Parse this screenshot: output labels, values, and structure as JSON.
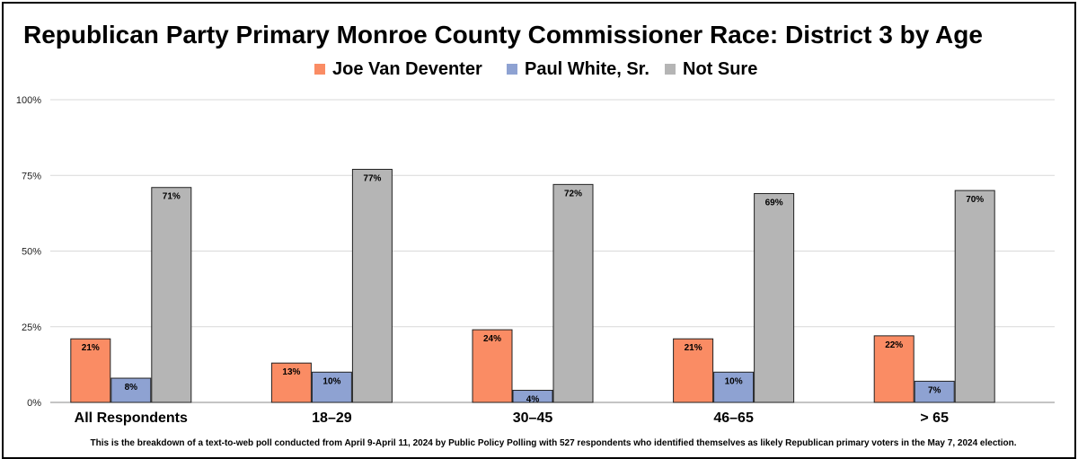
{
  "chart_data": {
    "type": "bar",
    "title": "Republican Party Primary Monroe County Commissioner Race: District 3 by Age",
    "categories": [
      "All Respondents",
      "18–29",
      "30–45",
      "46–65",
      "> 65"
    ],
    "series": [
      {
        "name": "Joe Van Deventer",
        "color": "#FA8C64",
        "values": [
          21,
          13,
          24,
          21,
          22
        ],
        "labels": [
          "21%",
          "13%",
          "24%",
          "21%",
          "22%"
        ]
      },
      {
        "name": "Paul White, Sr.",
        "color": "#8EA2D2",
        "values": [
          8,
          10,
          4,
          10,
          7
        ],
        "labels": [
          "8%",
          "10%",
          "4%",
          "10%",
          "7%"
        ]
      },
      {
        "name": "Not Sure",
        "color": "#B5B5B5",
        "values": [
          71,
          77,
          72,
          69,
          70
        ],
        "labels": [
          "71%",
          "77%",
          "72%",
          "69%",
          "70%"
        ]
      }
    ],
    "yticks": [
      0,
      25,
      50,
      75,
      100
    ],
    "ytick_labels": [
      "0%",
      "25%",
      "50%",
      "75%",
      "100%"
    ],
    "ylim": [
      0,
      100
    ],
    "grid": true,
    "legend_position": "top-center",
    "footnote": "This is the breakdown of a text-to-web poll conducted from April 9-April 11, 2024 by Public Policy Polling with 527 respondents who identified themselves as likely Republican primary voters in the May 7, 2024 election."
  }
}
